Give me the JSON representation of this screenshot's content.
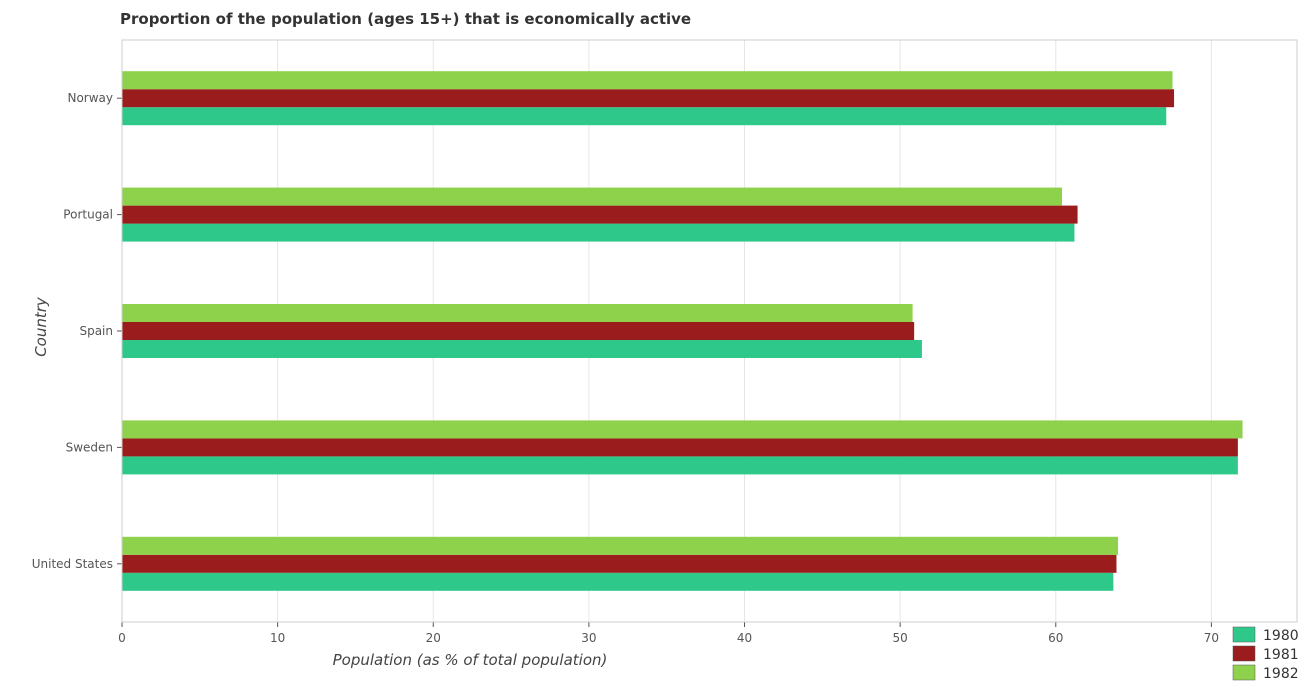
{
  "chart_data": {
    "type": "bar",
    "orientation": "horizontal",
    "title": "Proportion of the population (ages 15+) that is economically active",
    "xlabel": "Population (as % of total population)",
    "ylabel": "Country",
    "categories": [
      "Norway",
      "Portugal",
      "Spain",
      "Sweden",
      "United States"
    ],
    "series": [
      {
        "name": "1980",
        "color": "#2ec98a",
        "values": [
          67.1,
          61.2,
          51.4,
          71.7,
          63.7
        ]
      },
      {
        "name": "1981",
        "color": "#9b1c1c",
        "values": [
          67.6,
          61.4,
          50.9,
          71.7,
          63.9
        ]
      },
      {
        "name": "1982",
        "color": "#8ed14b",
        "values": [
          67.5,
          60.4,
          50.8,
          72.0,
          64.0
        ]
      }
    ],
    "xlim": [
      0,
      75.5
    ],
    "xticks": [
      0,
      10,
      20,
      30,
      40,
      50,
      60,
      70
    ],
    "grid": true,
    "legend_position": "bottom-right"
  }
}
